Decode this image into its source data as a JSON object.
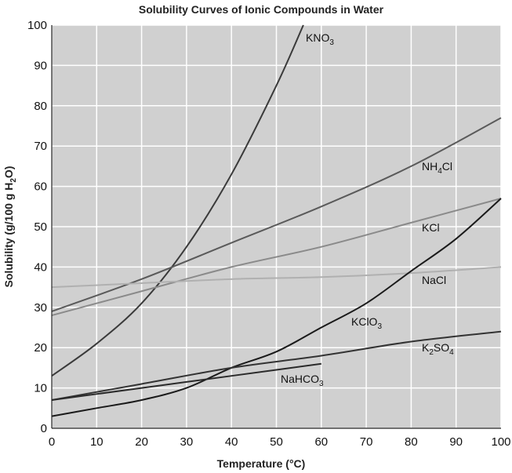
{
  "chart_data": {
    "type": "line",
    "title": "Solubility Curves of Ionic Compounds in Water",
    "xlabel": "Temperature (°C)",
    "ylabel": "Solubility (g/100 g H2O)",
    "ylabel_parts": [
      "Solubility (g/100 g H",
      "2",
      "O)"
    ],
    "xlim": [
      0,
      100
    ],
    "ylim": [
      0,
      100
    ],
    "xticks": [
      0,
      10,
      20,
      30,
      40,
      50,
      60,
      70,
      80,
      90,
      100
    ],
    "yticks": [
      0,
      10,
      20,
      30,
      40,
      50,
      60,
      70,
      80,
      90,
      100
    ],
    "grid": true,
    "series": [
      {
        "name": "KNO3",
        "label_parts": [
          "KNO",
          "3",
          ""
        ],
        "color": "#3a3a3a",
        "x": [
          0,
          10,
          20,
          30,
          40,
          50,
          56
        ],
        "y": [
          13,
          21,
          31,
          45,
          63,
          85,
          100
        ]
      },
      {
        "name": "NH4Cl",
        "label_parts": [
          "NH",
          "4",
          "Cl"
        ],
        "color": "#5a5a5a",
        "x": [
          0,
          20,
          40,
          60,
          80,
          100
        ],
        "y": [
          29,
          37,
          46,
          55,
          65,
          77
        ]
      },
      {
        "name": "KCl",
        "label_parts": [
          "KCl",
          "",
          ""
        ],
        "color": "#8a8a8a",
        "x": [
          0,
          20,
          40,
          60,
          80,
          100
        ],
        "y": [
          28,
          34,
          40,
          45,
          51,
          57
        ]
      },
      {
        "name": "NaCl",
        "label_parts": [
          "NaCl",
          "",
          ""
        ],
        "color": "#b0b0b0",
        "x": [
          0,
          20,
          40,
          60,
          80,
          100
        ],
        "y": [
          35,
          36,
          37,
          37.5,
          38.5,
          40
        ]
      },
      {
        "name": "KClO3",
        "label_parts": [
          "KClO",
          "3",
          ""
        ],
        "color": "#1a1a1a",
        "x": [
          0,
          10,
          20,
          30,
          40,
          50,
          60,
          70,
          80,
          90,
          100
        ],
        "y": [
          3,
          5,
          7,
          10,
          15,
          19,
          25,
          31,
          39,
          47,
          57
        ]
      },
      {
        "name": "K2SO4",
        "label_parts": [
          "K",
          "2",
          "SO"
        ],
        "label_suffix_sub": "4",
        "color": "#333333",
        "x": [
          0,
          20,
          40,
          60,
          80,
          100
        ],
        "y": [
          7,
          11,
          15,
          18,
          21.5,
          24
        ]
      },
      {
        "name": "NaHCO3",
        "label_parts": [
          "NaHCO",
          "3",
          ""
        ],
        "color": "#2a2a2a",
        "x": [
          0,
          10,
          20,
          30,
          40,
          50,
          60
        ],
        "y": [
          7,
          8.5,
          10,
          11.5,
          13,
          14.5,
          16
        ]
      }
    ]
  }
}
